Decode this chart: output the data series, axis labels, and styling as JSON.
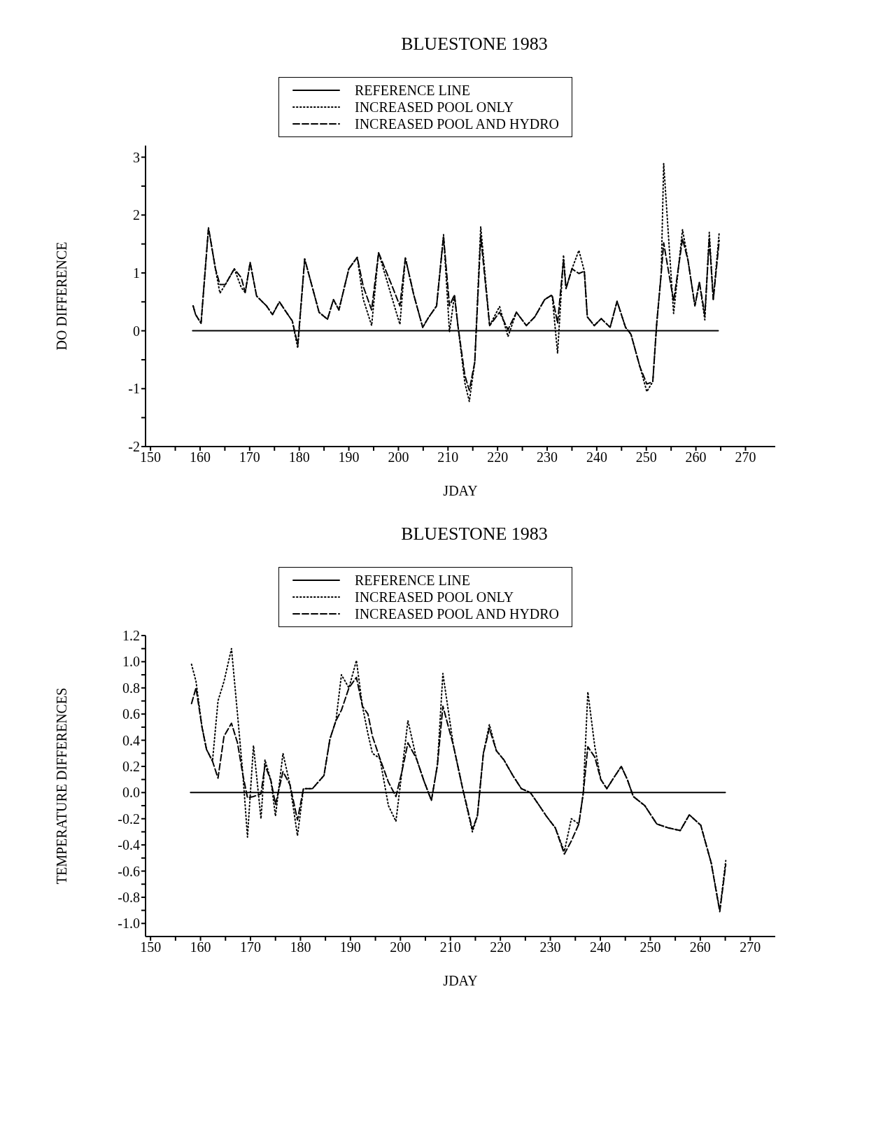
{
  "chart_data": [
    {
      "type": "line",
      "title": "BLUESTONE 1983",
      "xlabel": "JDAY",
      "ylabel": "DO DIFFERENCE",
      "legend": "top",
      "x": [
        158.6,
        159.1,
        160.2,
        161.7,
        163.1,
        164,
        165.1,
        166.9,
        168.3,
        169.1,
        170.1,
        171.4,
        173.4,
        174.6,
        176,
        177.4,
        178.6,
        179.7,
        181.1,
        184,
        185.7,
        186.9,
        188,
        190,
        191.7,
        192.9,
        194.6,
        196,
        198.6,
        200.3,
        201.4,
        203.1,
        204.9,
        206,
        207.7,
        209.1,
        210.3,
        211.3,
        212,
        213.4,
        214.3,
        215.4,
        216.6,
        218.4,
        220.4,
        222.1,
        223.8,
        225.8,
        227.5,
        229.5,
        231,
        232.1,
        233.3,
        233.8,
        235,
        236.4,
        237.5,
        238.1,
        239.5,
        240.9,
        242.7,
        244.1,
        245.8,
        246.9,
        248.7,
        250.1,
        251.3,
        252.1,
        253,
        253.5,
        255.5,
        257.3,
        258.4,
        259.8,
        260.7,
        261.8,
        262.7,
        263.5,
        264.7
      ],
      "series": [
        {
          "name": "REFERENCE LINE",
          "color": "#000000",
          "line_style": "solid",
          "x": [
            158.5,
            264.5
          ],
          "values": [
            0,
            0
          ]
        },
        {
          "name": "INCREASED POOL ONLY",
          "color": "#000000",
          "line_style": "dotted",
          "values": [
            0.43,
            0.28,
            0.13,
            1.78,
            1.07,
            0.65,
            0.8,
            1.07,
            0.75,
            0.66,
            1.18,
            0.6,
            0.43,
            0.28,
            0.5,
            0.32,
            0.17,
            -0.3,
            1.24,
            0.32,
            0.2,
            0.54,
            0.36,
            1.07,
            1.27,
            0.55,
            0.09,
            1.35,
            0.6,
            0.11,
            1.26,
            0.62,
            0.06,
            0.22,
            0.43,
            1.66,
            -0.02,
            0.62,
            0.09,
            -0.9,
            -1.22,
            -0.54,
            1.8,
            0.09,
            0.42,
            -0.1,
            0.32,
            0.09,
            0.24,
            0.54,
            0.62,
            -0.39,
            1.31,
            0.73,
            1.07,
            1.39,
            1.03,
            0.24,
            0.09,
            0.21,
            0.06,
            0.51,
            0.06,
            -0.06,
            -0.62,
            -1.05,
            -0.88,
            0.13,
            0.99,
            2.89,
            0.3,
            1.75,
            1.22,
            0.43,
            0.84,
            0.19,
            1.7,
            0.54,
            1.7
          ]
        },
        {
          "name": "INCREASED POOL AND HYDRO",
          "color": "#000000",
          "line_style": "dashed",
          "values": [
            0.43,
            0.28,
            0.13,
            1.78,
            1.07,
            0.8,
            0.8,
            1.07,
            0.92,
            0.66,
            1.18,
            0.6,
            0.43,
            0.28,
            0.5,
            0.32,
            0.17,
            -0.24,
            1.24,
            0.32,
            0.2,
            0.54,
            0.36,
            1.07,
            1.27,
            0.77,
            0.36,
            1.35,
            0.8,
            0.43,
            1.26,
            0.62,
            0.06,
            0.22,
            0.43,
            1.63,
            0.43,
            0.62,
            0.09,
            -0.77,
            -1.03,
            -0.54,
            1.63,
            0.09,
            0.32,
            0.02,
            0.32,
            0.09,
            0.24,
            0.54,
            0.62,
            0.13,
            1.22,
            0.73,
            1.07,
            0.99,
            1.03,
            0.24,
            0.09,
            0.21,
            0.06,
            0.51,
            0.06,
            -0.06,
            -0.62,
            -0.92,
            -0.88,
            0.13,
            0.99,
            1.52,
            0.51,
            1.59,
            1.22,
            0.43,
            0.84,
            0.28,
            1.59,
            0.54,
            1.56
          ]
        }
      ],
      "xlim": [
        149,
        276
      ],
      "xticks": [
        150,
        {
          "value": 155,
          "label": null
        },
        160,
        {
          "value": 165,
          "label": null
        },
        170,
        {
          "value": 175,
          "label": null
        },
        180,
        {
          "value": 185,
          "label": null
        },
        190,
        {
          "value": 195,
          "label": null
        },
        200,
        {
          "value": 205,
          "label": null
        },
        210,
        {
          "value": 215,
          "label": null
        },
        220,
        {
          "value": 225,
          "label": null
        },
        230,
        {
          "value": 235,
          "label": null
        },
        240,
        {
          "value": 245,
          "label": null
        },
        250,
        {
          "value": 255,
          "label": null
        },
        260,
        {
          "value": 265,
          "label": null
        },
        270
      ],
      "ylim": [
        -2,
        3.2
      ],
      "yticks": [
        -2,
        {
          "value": -1.5,
          "label": null
        },
        -1,
        {
          "value": -0.5,
          "label": null
        },
        0,
        {
          "value": 0.5,
          "label": null
        },
        1,
        {
          "value": 1.5,
          "label": null
        },
        2,
        {
          "value": 2.5,
          "label": null
        },
        3
      ]
    },
    {
      "type": "line",
      "title": "BLUESTONE 1983",
      "xlabel": "JDAY",
      "ylabel": "TEMPERATURE DIFFERENCES",
      "legend": "top",
      "x": [
        158.2,
        159.1,
        160.3,
        161.2,
        162.4,
        163.5,
        164.7,
        166.2,
        167.4,
        168.5,
        169.4,
        170.6,
        172.1,
        172.9,
        174.1,
        175,
        176.5,
        177.9,
        179.4,
        180.6,
        182.4,
        184.7,
        185.9,
        187.1,
        188.2,
        189.7,
        191.2,
        192.4,
        193.5,
        194.4,
        195.9,
        197.6,
        199.1,
        200.3,
        201.5,
        203.2,
        204.7,
        206.2,
        207.4,
        208.5,
        210.6,
        212.4,
        214.4,
        215.4,
        216.6,
        217.8,
        219.2,
        220.7,
        222.5,
        224.2,
        226,
        227.8,
        229.2,
        231,
        232.8,
        234.2,
        235.7,
        236.6,
        237.5,
        238.9,
        240.1,
        241.3,
        242.8,
        244.2,
        245.4,
        246.6,
        248.9,
        251.3,
        253.6,
        256,
        257.8,
        260.1,
        262.2,
        263.9,
        265.1
      ],
      "series": [
        {
          "name": "REFERENCE LINE",
          "color": "#000000",
          "line_style": "solid",
          "x": [
            158,
            265
          ],
          "values": [
            0,
            0
          ]
        },
        {
          "name": "INCREASED POOL ONLY",
          "color": "#000000",
          "line_style": "dotted",
          "values": [
            0.98,
            0.85,
            0.5,
            0.33,
            0.24,
            0.7,
            0.85,
            1.1,
            0.6,
            0.13,
            -0.34,
            0.36,
            -0.2,
            0.25,
            0.09,
            -0.18,
            0.3,
            0.06,
            -0.33,
            0.03,
            0.03,
            0.13,
            0.41,
            0.55,
            0.9,
            0.8,
            1.01,
            0.66,
            0.45,
            0.3,
            0.26,
            -0.1,
            -0.22,
            0.16,
            0.55,
            0.26,
            0.09,
            -0.06,
            0.21,
            0.91,
            0.36,
            0.04,
            -0.3,
            -0.18,
            0.3,
            0.52,
            0.32,
            0.25,
            0.13,
            0.03,
            0,
            -0.1,
            -0.18,
            -0.27,
            -0.45,
            -0.2,
            -0.24,
            0,
            0.77,
            0.35,
            0.1,
            0.03,
            0.12,
            0.2,
            0.1,
            -0.03,
            -0.1,
            -0.24,
            -0.27,
            -0.29,
            -0.17,
            -0.25,
            -0.54,
            -0.9,
            -0.52
          ]
        },
        {
          "name": "INCREASED POOL AND HYDRO",
          "color": "#000000",
          "line_style": "dashed",
          "values": [
            0.68,
            0.8,
            0.5,
            0.33,
            0.24,
            0.11,
            0.43,
            0.53,
            0.38,
            0.13,
            -0.04,
            -0.03,
            -0.01,
            0.21,
            0.09,
            -0.09,
            0.16,
            0.06,
            -0.21,
            0.03,
            0.03,
            0.13,
            0.41,
            0.55,
            0.63,
            0.8,
            0.88,
            0.66,
            0.6,
            0.43,
            0.26,
            0.08,
            -0.03,
            0.16,
            0.38,
            0.26,
            0.09,
            -0.06,
            0.21,
            0.66,
            0.36,
            0.04,
            -0.28,
            -0.18,
            0.3,
            0.49,
            0.32,
            0.25,
            0.13,
            0.03,
            0,
            -0.1,
            -0.18,
            -0.27,
            -0.47,
            -0.37,
            -0.24,
            0,
            0.35,
            0.27,
            0.1,
            0.03,
            0.12,
            0.2,
            0.1,
            -0.03,
            -0.1,
            -0.24,
            -0.27,
            -0.29,
            -0.17,
            -0.25,
            -0.54,
            -0.91,
            -0.55
          ]
        }
      ],
      "xlim": [
        149,
        275
      ],
      "xticks": [
        150,
        {
          "value": 155,
          "label": null
        },
        160,
        {
          "value": 165,
          "label": null
        },
        170,
        {
          "value": 175,
          "label": null
        },
        180,
        {
          "value": 185,
          "label": null
        },
        190,
        {
          "value": 195,
          "label": null
        },
        200,
        {
          "value": 205,
          "label": null
        },
        210,
        {
          "value": 215,
          "label": null
        },
        220,
        {
          "value": 225,
          "label": null
        },
        230,
        {
          "value": 235,
          "label": null
        },
        240,
        {
          "value": 245,
          "label": null
        },
        250,
        {
          "value": 255,
          "label": null
        },
        260,
        {
          "value": 265,
          "label": null
        },
        270
      ],
      "ylim": [
        -1.1,
        1.2
      ],
      "yticks": [
        {
          "value": -1,
          "label": "-1.0"
        },
        {
          "value": -0.9,
          "label": null
        },
        {
          "value": -0.8,
          "label": "-0.8"
        },
        {
          "value": -0.7,
          "label": null
        },
        {
          "value": -0.6,
          "label": "-0.6"
        },
        {
          "value": -0.5,
          "label": null
        },
        {
          "value": -0.4,
          "label": "-0.4"
        },
        {
          "value": -0.3,
          "label": null
        },
        {
          "value": -0.2,
          "label": "-0.2"
        },
        {
          "value": -0.1,
          "label": null
        },
        {
          "value": 0,
          "label": "0.0"
        },
        {
          "value": 0.1,
          "label": null
        },
        {
          "value": 0.2,
          "label": "0.2"
        },
        {
          "value": 0.3,
          "label": null
        },
        {
          "value": 0.4,
          "label": "0.4"
        },
        {
          "value": 0.5,
          "label": null
        },
        {
          "value": 0.6,
          "label": "0.6"
        },
        {
          "value": 0.7,
          "label": null
        },
        {
          "value": 0.8,
          "label": "0.8"
        },
        {
          "value": 0.9,
          "label": null
        },
        {
          "value": 1,
          "label": "1.0"
        },
        {
          "value": 1.1,
          "label": null
        },
        1.2
      ]
    }
  ]
}
